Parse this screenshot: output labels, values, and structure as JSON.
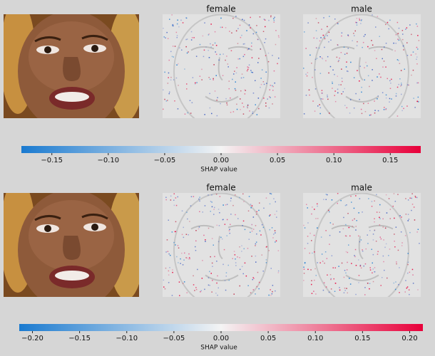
{
  "panels": [
    {
      "titles": [
        "female",
        "male"
      ],
      "colorbar": {
        "label": "SHAP value",
        "lim": [
          -0.177,
          0.177
        ],
        "ticks": [
          {
            "value": -0.15,
            "label": "−0.15"
          },
          {
            "value": -0.1,
            "label": "−0.10"
          },
          {
            "value": -0.05,
            "label": "−0.05"
          },
          {
            "value": 0,
            "label": "0.00"
          },
          0.05,
          {
            "value": 0.1,
            "label": "0.10"
          },
          0.15
        ]
      }
    },
    {
      "titles": [
        "female",
        "male"
      ],
      "colorbar": {
        "label": "SHAP value",
        "lim": [
          -0.214,
          0.214
        ],
        "ticks": [
          {
            "value": -0.2,
            "label": "−0.20"
          },
          {
            "value": -0.15,
            "label": "−0.15"
          },
          {
            "value": -0.1,
            "label": "−0.10"
          },
          {
            "value": -0.05,
            "label": "−0.05"
          },
          {
            "value": 0,
            "label": "0.00"
          },
          0.05,
          {
            "value": 0.1,
            "label": "0.10"
          },
          0.15,
          {
            "value": 0.2,
            "label": "0.20"
          }
        ]
      }
    }
  ]
}
